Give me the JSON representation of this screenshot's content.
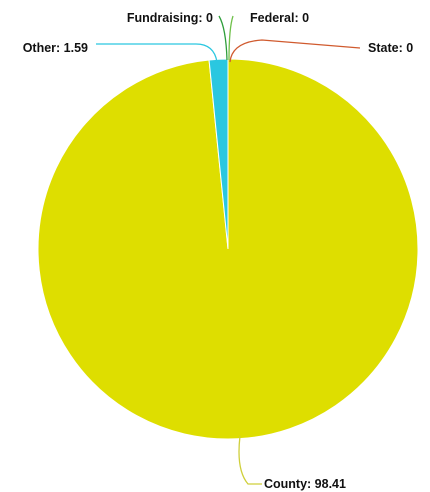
{
  "chart_data": {
    "type": "pie",
    "slices": [
      {
        "label": "County",
        "value": 98.41,
        "color": "#dede00"
      },
      {
        "label": "State",
        "value": 0,
        "color": "#d05a2e"
      },
      {
        "label": "Federal",
        "value": 0,
        "color": "#6fc04a"
      },
      {
        "label": "Fundraising",
        "value": 0,
        "color": "#2f9e3c"
      },
      {
        "label": "Other",
        "value": 1.59,
        "color": "#2ac7e0"
      }
    ]
  }
}
